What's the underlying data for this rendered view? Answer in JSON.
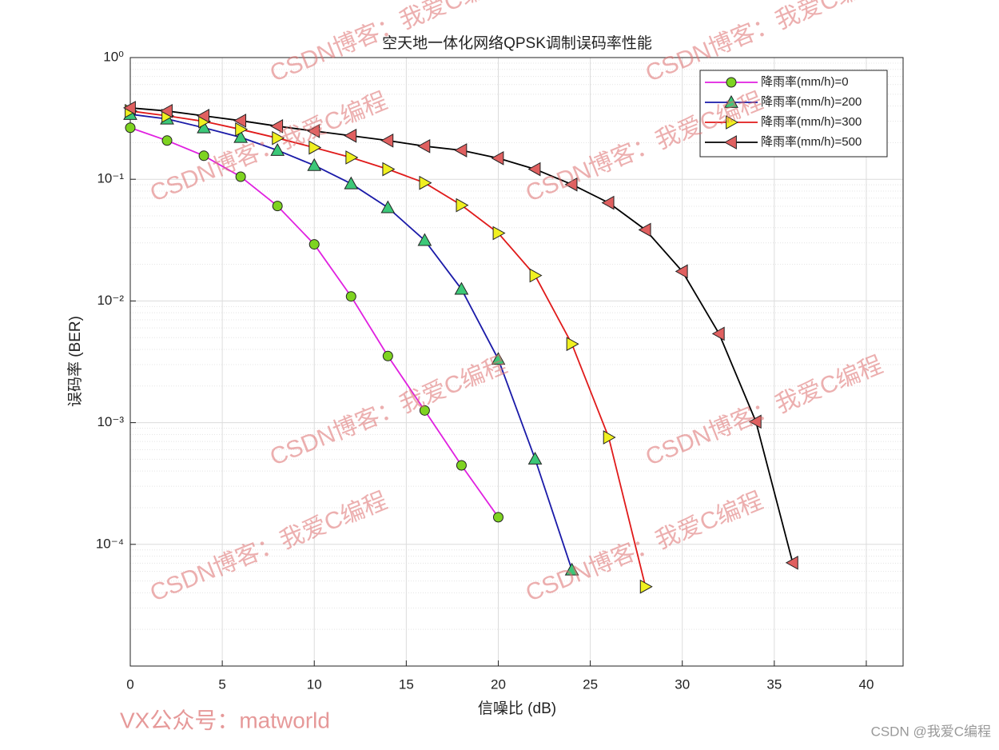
{
  "chart_data": {
    "type": "line",
    "title": "空天地一体化网络QPSK调制误码率性能",
    "x_label": "信噪比 (dB)",
    "y_label": "误码率 (BER)",
    "xlim": [
      0,
      42
    ],
    "xticks": [
      0,
      5,
      10,
      15,
      20,
      25,
      30,
      35,
      40
    ],
    "ylim": [
      1e-05,
      1
    ],
    "yticks": [
      {
        "value": 1,
        "label": "10⁰"
      },
      {
        "value": 0.1,
        "label": "10⁻¹"
      },
      {
        "value": 0.01,
        "label": "10⁻²"
      },
      {
        "value": 0.001,
        "label": "10⁻³"
      },
      {
        "value": 0.0001,
        "label": "10⁻⁴"
      }
    ],
    "y_scale": "log",
    "grid": true,
    "minor_grid": true,
    "legend_position": "upper right",
    "series": [
      {
        "name": "降雨率(mm/h)=0",
        "color": "#e020e0",
        "marker": "circle",
        "marker_color": "#7ed321",
        "x": [
          0,
          2,
          4,
          6,
          8,
          10,
          12,
          14,
          16,
          18,
          20
        ],
        "values": [
          0.265,
          0.208,
          0.156,
          0.105,
          0.0603,
          0.0292,
          0.0109,
          0.00353,
          0.00126,
          0.000446,
          0.000167
        ]
      },
      {
        "name": "降雨率(mm/h)=200",
        "color": "#1a1aa8",
        "marker": "triangle-up",
        "marker_color": "#3cc878",
        "x": [
          0,
          2,
          4,
          6,
          8,
          10,
          12,
          14,
          16,
          18,
          20,
          22,
          24
        ],
        "values": [
          0.342,
          0.313,
          0.265,
          0.221,
          0.173,
          0.13,
          0.092,
          0.0585,
          0.0315,
          0.0125,
          0.00332,
          0.000503,
          6.17e-05
        ]
      },
      {
        "name": "降雨率(mm/h)=300",
        "color": "#e01a1a",
        "marker": "triangle-right",
        "marker_color": "#f0f020",
        "x": [
          0,
          2,
          4,
          6,
          8,
          10,
          12,
          14,
          16,
          18,
          20,
          22,
          24,
          26,
          28
        ],
        "values": [
          0.364,
          0.332,
          0.299,
          0.257,
          0.218,
          0.182,
          0.151,
          0.121,
          0.0934,
          0.0612,
          0.0361,
          0.0162,
          0.00443,
          0.000757,
          4.49e-05
        ]
      },
      {
        "name": "降雨率(mm/h)=500",
        "color": "#000000",
        "marker": "triangle-left",
        "marker_color": "#e06060",
        "x": [
          0,
          2,
          4,
          6,
          8,
          10,
          12,
          14,
          16,
          18,
          20,
          22,
          24,
          26,
          28,
          30,
          32,
          34,
          36
        ],
        "values": [
          0.386,
          0.364,
          0.332,
          0.303,
          0.273,
          0.249,
          0.228,
          0.208,
          0.187,
          0.173,
          0.149,
          0.121,
          0.0906,
          0.0641,
          0.0384,
          0.0175,
          0.00538,
          0.00102,
          7.06e-05
        ]
      }
    ]
  },
  "watermark": "CSDN博客：我爱C编程",
  "footer_left": "VX公众号：matworld",
  "footer_right": "CSDN @我爱C编程"
}
